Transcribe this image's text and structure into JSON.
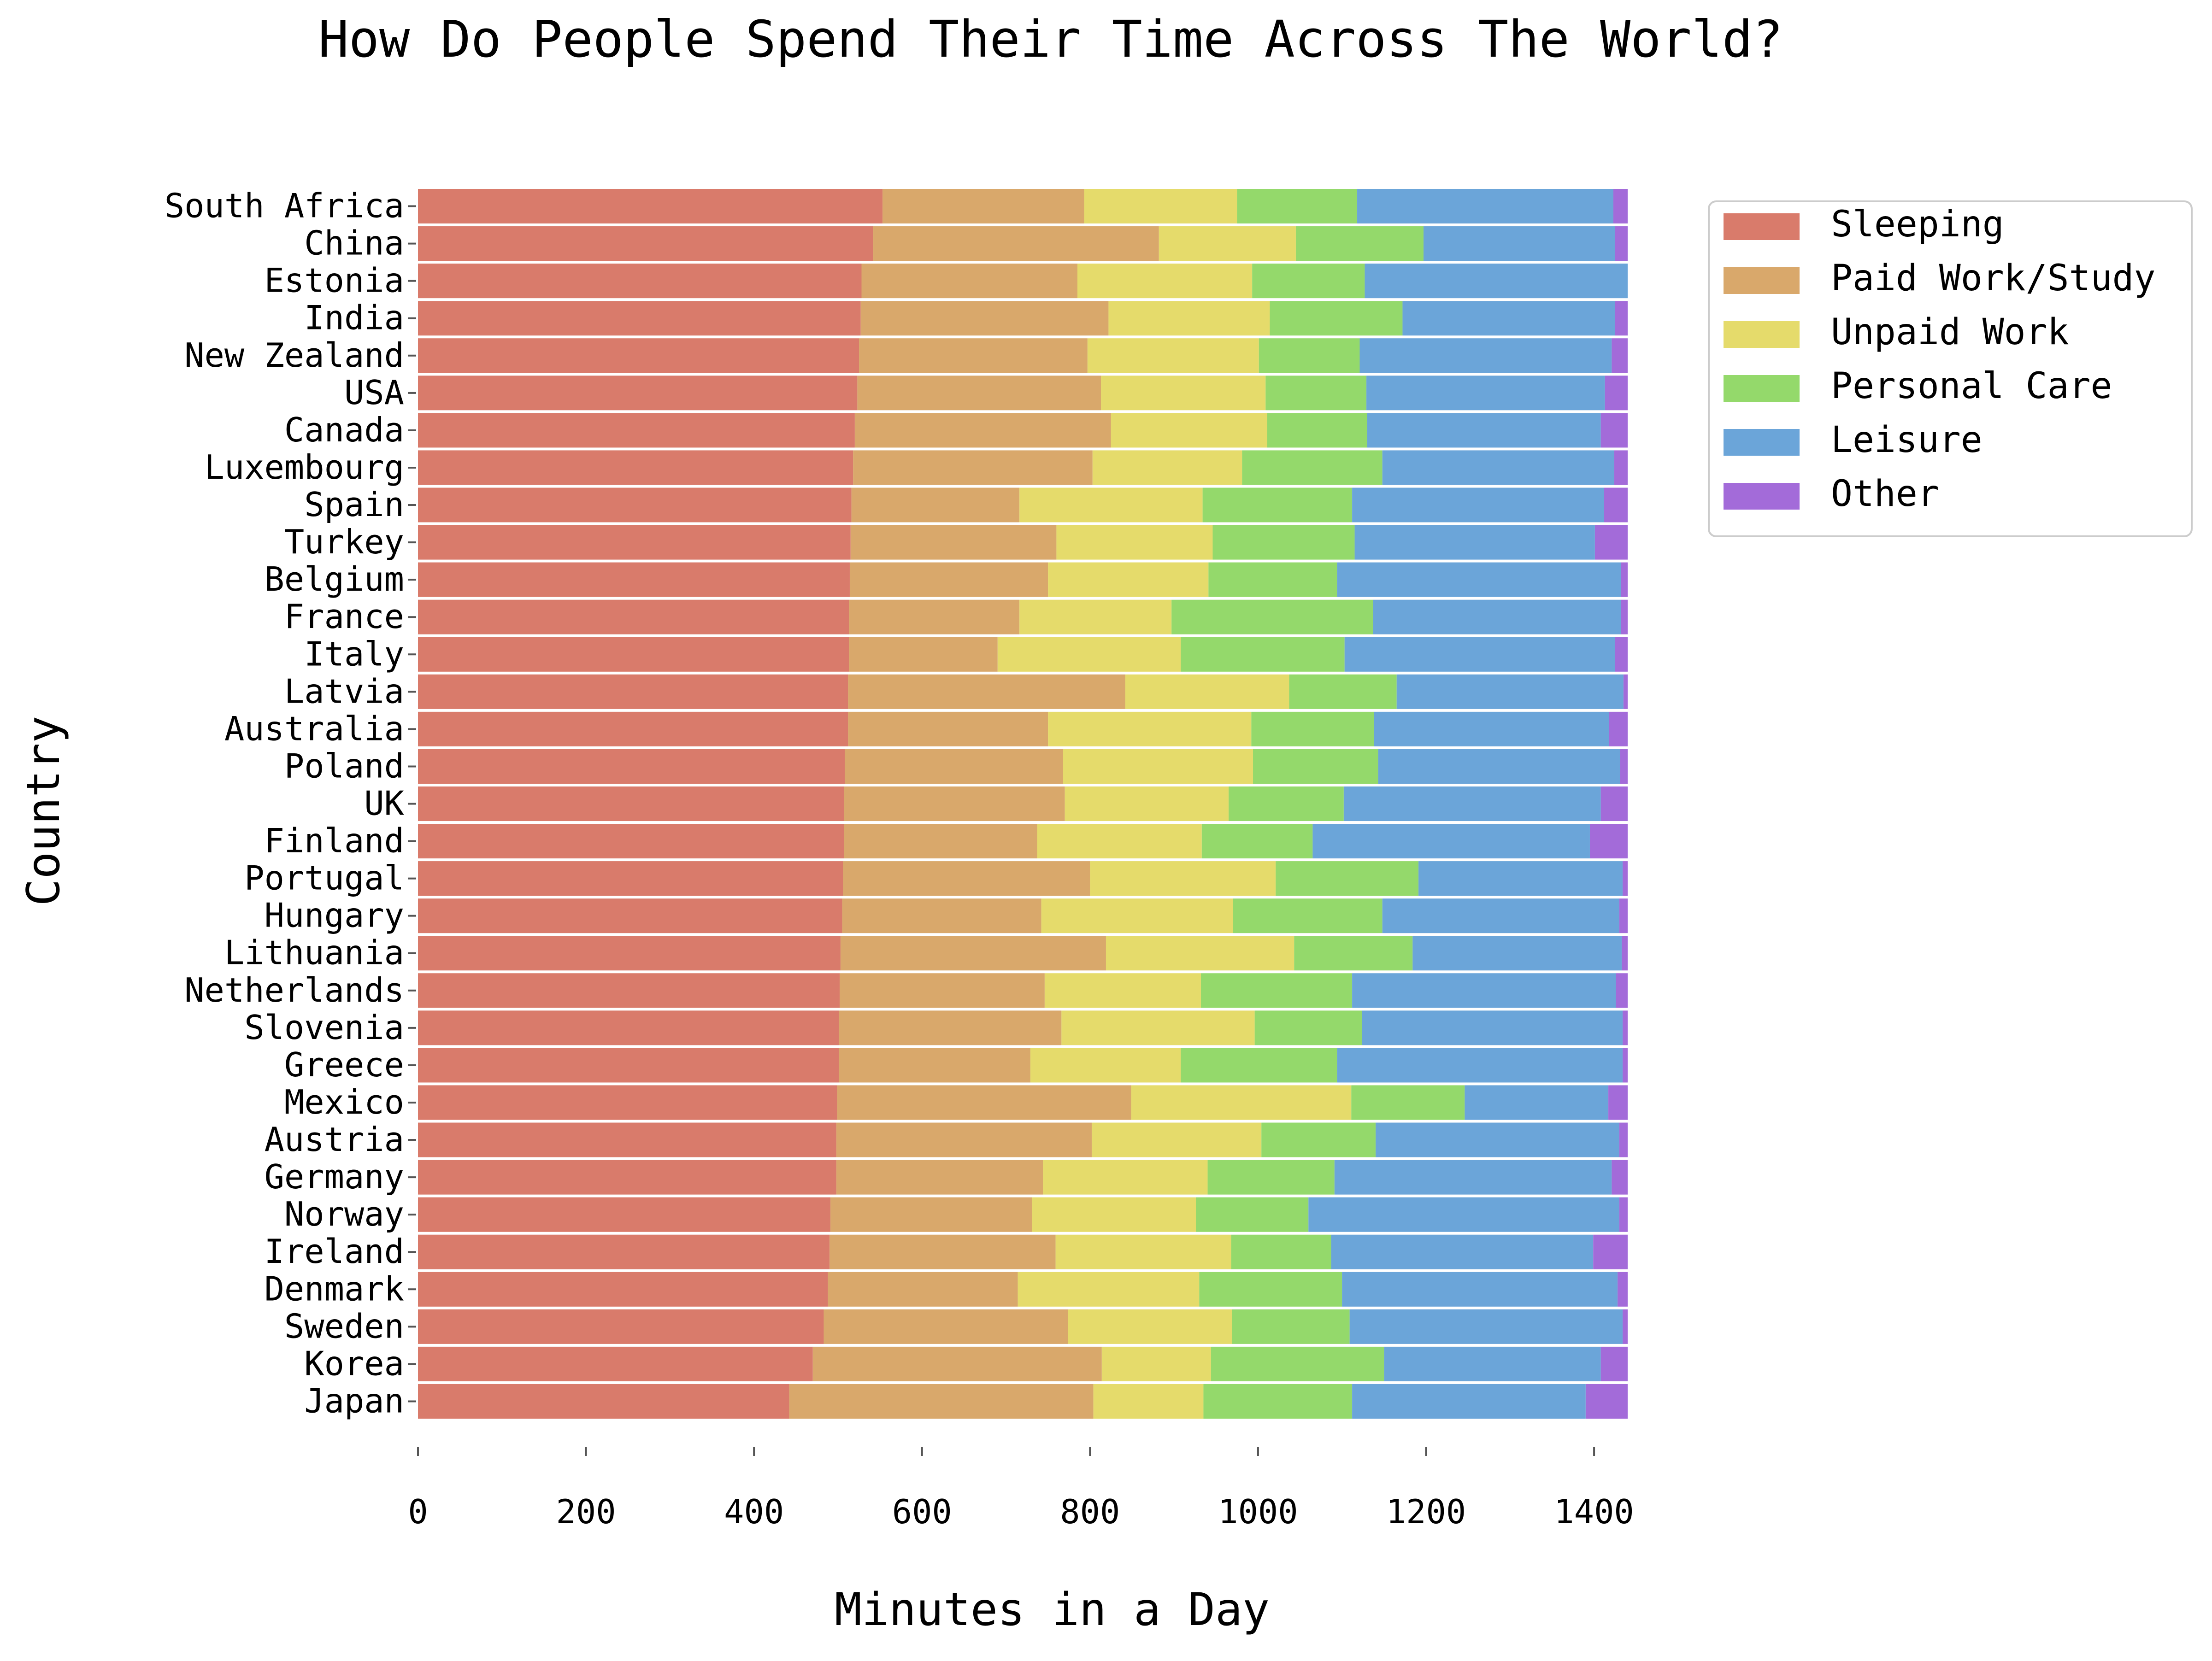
{
  "chart_data": {
    "type": "bar",
    "orientation": "horizontal",
    "stacked": true,
    "title": "How Do People Spend Their Time Across The World?",
    "xlabel": "Minutes in a Day",
    "ylabel": "Country",
    "xlim": [
      0,
      1440
    ],
    "xticks": [
      0,
      200,
      400,
      600,
      800,
      1000,
      1200,
      1400
    ],
    "grid": false,
    "legend_position": "top-right, outside plot",
    "categories": [
      "South Africa",
      "China",
      "Estonia",
      "India",
      "New Zealand",
      "USA",
      "Canada",
      "Luxembourg",
      "Spain",
      "Turkey",
      "Belgium",
      "France",
      "Italy ",
      "Latvia",
      "Australia",
      "Poland",
      "UK",
      "Finland",
      "Portugal",
      "Hungary",
      "Lithuania ",
      "Netherlands",
      "Slovenia",
      "Greece",
      "Mexico",
      "Austria",
      "Germany",
      "Norway ",
      "Ireland",
      "Denmark",
      "Sweden",
      "Korea",
      "Japan"
    ],
    "series": [
      {
        "name": "Sleeping",
        "color": "#d97b6b",
        "values": [
          553,
          542,
          528,
          527,
          525,
          523,
          520,
          518,
          516,
          515,
          514,
          513,
          513,
          512,
          512,
          508,
          507,
          507,
          506,
          505,
          503,
          502,
          501,
          501,
          499,
          498,
          498,
          491,
          490,
          488,
          483,
          470,
          442
        ]
      },
      {
        "name": "Paid Work/Study",
        "color": "#d9a86b",
        "values": [
          240,
          340,
          257,
          295,
          272,
          290,
          305,
          285,
          200,
          245,
          236,
          203,
          177,
          330,
          238,
          260,
          263,
          230,
          294,
          237,
          316,
          244,
          265,
          228,
          350,
          304,
          246,
          240,
          269,
          226,
          291,
          344,
          362
        ]
      },
      {
        "name": "Unpaid Work",
        "color": "#e5db6b",
        "values": [
          182,
          163,
          208,
          192,
          204,
          196,
          186,
          178,
          218,
          186,
          191,
          181,
          218,
          195,
          242,
          226,
          195,
          196,
          221,
          228,
          224,
          186,
          230,
          179,
          262,
          202,
          196,
          195,
          209,
          216,
          195,
          130,
          131
        ]
      },
      {
        "name": "Personal Care",
        "color": "#94d96b",
        "values": [
          143,
          152,
          134,
          158,
          120,
          120,
          119,
          167,
          178,
          169,
          153,
          240,
          195,
          128,
          146,
          149,
          137,
          132,
          170,
          178,
          141,
          180,
          128,
          186,
          135,
          136,
          151,
          134,
          119,
          170,
          140,
          206,
          177
        ]
      },
      {
        "name": "Leisure",
        "color": "#6ba5d9",
        "values": [
          305,
          228,
          313,
          253,
          300,
          284,
          278,
          276,
          300,
          286,
          338,
          295,
          322,
          270,
          280,
          288,
          306,
          330,
          243,
          282,
          249,
          314,
          310,
          340,
          171,
          290,
          330,
          370,
          312,
          328,
          325,
          258,
          278
        ]
      },
      {
        "name": "Other",
        "color": "#a36bd9",
        "values": [
          17,
          15,
          0,
          15,
          19,
          27,
          32,
          16,
          28,
          39,
          8,
          8,
          15,
          5,
          22,
          9,
          32,
          45,
          6,
          10,
          7,
          14,
          6,
          6,
          23,
          10,
          19,
          10,
          41,
          12,
          6,
          32,
          50
        ]
      }
    ]
  }
}
